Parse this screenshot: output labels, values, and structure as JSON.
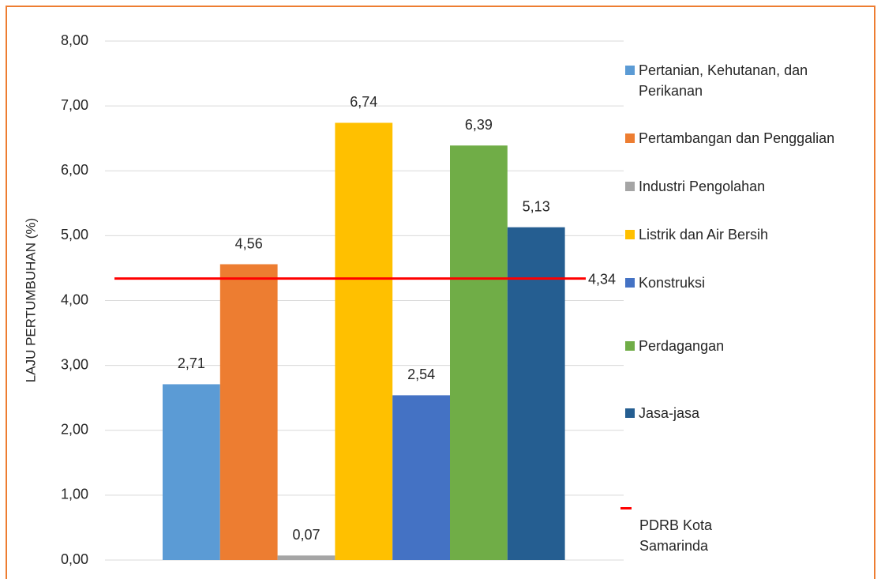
{
  "chart_data": {
    "type": "bar",
    "y_axis_label": "LAJU PERTUMBUHAN (%)",
    "ylim": [
      0,
      8
    ],
    "yticks": [
      {
        "value": 0,
        "label": "0,00"
      },
      {
        "value": 1,
        "label": "1,00"
      },
      {
        "value": 2,
        "label": "2,00"
      },
      {
        "value": 3,
        "label": "3,00"
      },
      {
        "value": 4,
        "label": "4,00"
      },
      {
        "value": 5,
        "label": "5,00"
      },
      {
        "value": 6,
        "label": "6,00"
      },
      {
        "value": 7,
        "label": "7,00"
      },
      {
        "value": 8,
        "label": "8,00"
      }
    ],
    "grid": true,
    "legend": "right",
    "series": [
      {
        "name": "Pertanian, Kehutanan, dan Perikanan",
        "color": "#5b9bd5",
        "values": [
          2.71
        ],
        "value_labels": [
          "2,71"
        ]
      },
      {
        "name": "Pertambangan dan Penggalian",
        "color": "#ed7d31",
        "values": [
          4.56
        ],
        "value_labels": [
          "4,56"
        ]
      },
      {
        "name": "Industri Pengolahan",
        "color": "#a5a5a5",
        "values": [
          0.07
        ],
        "value_labels": [
          "0,07"
        ]
      },
      {
        "name": "Listrik dan Air Bersih",
        "color": "#ffc000",
        "values": [
          6.74
        ],
        "value_labels": [
          "6,74"
        ]
      },
      {
        "name": "Konstruksi",
        "color": "#4472c4",
        "values": [
          2.54
        ],
        "value_labels": [
          "2,54"
        ]
      },
      {
        "name": "Perdagangan",
        "color": "#70ad47",
        "values": [
          6.39
        ],
        "value_labels": [
          "6,39"
        ]
      },
      {
        "name": "Jasa-jasa",
        "color": "#255e91",
        "values": [
          5.13
        ],
        "value_labels": [
          "5,13"
        ]
      }
    ],
    "reference_line": {
      "name": "PDRB Kota Samarinda",
      "value": 4.34,
      "value_label": "4,34",
      "color": "#ff0000"
    }
  }
}
